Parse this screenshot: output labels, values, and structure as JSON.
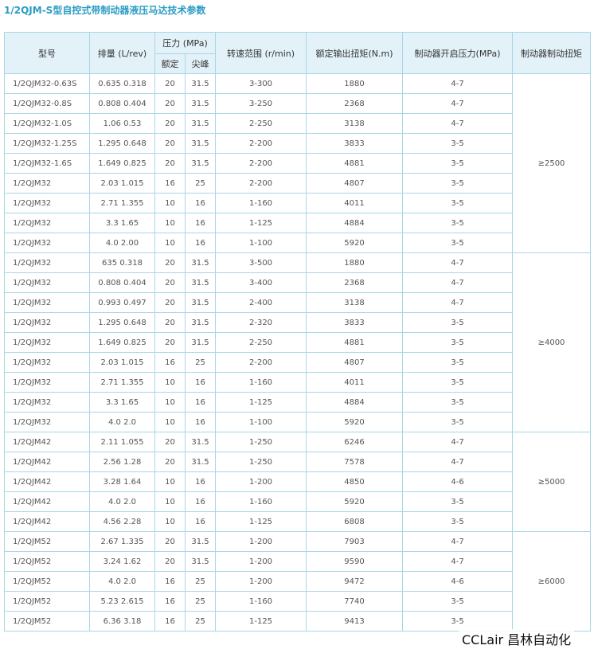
{
  "title": "1/2QJM-S型自控式带制动器液压马达技术参数",
  "header": {
    "model": "型号",
    "displacement": "排量 (L/rev)",
    "pressure": "压力 (MPa)",
    "rated": "额定",
    "peak": "尖峰",
    "speed": "转速范围 (r/min)",
    "torque": "额定输出扭矩(N.m)",
    "open_pressure": "制动器开启压力(MPa)",
    "brake_torque": "制动器制动扭矩"
  },
  "groups": [
    {
      "brake_torque": "≥2500",
      "rows": [
        [
          "1/2QJM32-0.63S",
          "0.635 0.318",
          "20",
          "31.5",
          "3-300",
          "1880",
          "4-7"
        ],
        [
          "1/2QJM32-0.8S",
          "0.808 0.404",
          "20",
          "31.5",
          "3-250",
          "2368",
          "4-7"
        ],
        [
          "1/2QJM32-1.0S",
          "1.06 0.53",
          "20",
          "31.5",
          "2-250",
          "3138",
          "4-7"
        ],
        [
          "1/2QJM32-1.25S",
          "1.295 0.648",
          "20",
          "31.5",
          "2-200",
          "3833",
          "3-5"
        ],
        [
          "1/2QJM32-1.6S",
          "1.649 0.825",
          "20",
          "31.5",
          "2-200",
          "4881",
          "3-5"
        ],
        [
          "1/2QJM32",
          "2.03 1.015",
          "16",
          "25",
          "2-200",
          "4807",
          "3-5"
        ],
        [
          "1/2QJM32",
          "2.71 1.355",
          "10",
          "16",
          "1-160",
          "4011",
          "3-5"
        ],
        [
          "1/2QJM32",
          "3.3 1.65",
          "10",
          "16",
          "1-125",
          "4884",
          "3-5"
        ],
        [
          "1/2QJM32",
          "4.0 2.00",
          "10",
          "16",
          "1-100",
          "5920",
          "3-5"
        ]
      ]
    },
    {
      "brake_torque": "≥4000",
      "rows": [
        [
          "1/2QJM32",
          "635 0.318",
          "20",
          "31.5",
          "3-500",
          "1880",
          "4-7"
        ],
        [
          "1/2QJM32",
          "0.808 0.404",
          "20",
          "31.5",
          "3-400",
          "2368",
          "4-7"
        ],
        [
          "1/2QJM32",
          "0.993 0.497",
          "20",
          "31.5",
          "2-400",
          "3138",
          "4-7"
        ],
        [
          "1/2QJM32",
          "1.295 0.648",
          "20",
          "31.5",
          "2-320",
          "3833",
          "3-5"
        ],
        [
          "1/2QJM32",
          "1.649 0.825",
          "20",
          "31.5",
          "2-250",
          "4881",
          "3-5"
        ],
        [
          "1/2QJM32",
          "2.03 1.015",
          "16",
          "25",
          "2-200",
          "4807",
          "3-5"
        ],
        [
          "1/2QJM32",
          "2.71 1.355",
          "10",
          "16",
          "1-160",
          "4011",
          "3-5"
        ],
        [
          "1/2QJM32",
          "3.3 1.65",
          "10",
          "16",
          "1-125",
          "4884",
          "3-5"
        ],
        [
          "1/2QJM32",
          "4.0 2.0",
          "10",
          "16",
          "1-100",
          "5920",
          "3-5"
        ]
      ]
    },
    {
      "brake_torque": "≥5000",
      "rows": [
        [
          "1/2QJM42",
          "2.11 1.055",
          "20",
          "31.5",
          "1-250",
          "6246",
          "4-7"
        ],
        [
          "1/2QJM42",
          "2.56 1.28",
          "20",
          "31.5",
          "1-250",
          "7578",
          "4-7"
        ],
        [
          "1/2QJM42",
          "3.28 1.64",
          "10",
          "16",
          "1-200",
          "4850",
          "4-6"
        ],
        [
          "1/2QJM42",
          "4.0 2.0",
          "10",
          "16",
          "1-160",
          "5920",
          "3-5"
        ],
        [
          "1/2QJM42",
          "4.56 2.28",
          "10",
          "16",
          "1-125",
          "6808",
          "3-5"
        ]
      ]
    },
    {
      "brake_torque": "≥6000",
      "rows": [
        [
          "1/2QJM52",
          "2.67 1.335",
          "20",
          "31.5",
          "1-200",
          "7903",
          "4-7"
        ],
        [
          "1/2QJM52",
          "3.24 1.62",
          "20",
          "31.5",
          "1-200",
          "9590",
          "4-7"
        ],
        [
          "1/2QJM52",
          "4.0 2.0",
          "16",
          "25",
          "1-200",
          "9472",
          "4-6"
        ],
        [
          "1/2QJM52",
          "5.23 2.615",
          "16",
          "25",
          "1-160",
          "7740",
          "3-5"
        ],
        [
          "1/2QJM52",
          "6.36 3.18",
          "16",
          "25",
          "1-125",
          "9413",
          "3-5"
        ]
      ]
    }
  ],
  "watermark": "CCLair 昌林自动化"
}
